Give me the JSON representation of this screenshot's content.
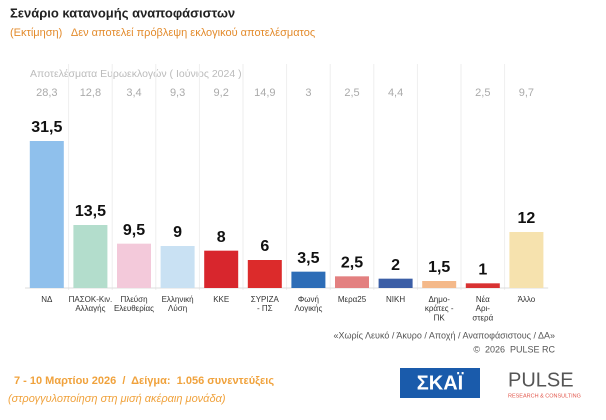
{
  "chart_data": {
    "type": "bar",
    "title": "Σενάριο κατανομής αναποφάσιστων",
    "subtitle": "(Εκτίμηση)   Δεν αποτελεί πρόβλεψη εκλογικού αποτελέσματος",
    "categories": [
      "ΝΔ",
      "ΠΑΣΟΚ-Κιν.\nΑλλαγής",
      "Πλεύση\nΕλευθερίας",
      "Ελληνική\nΛύση",
      "ΚΚΕ",
      "ΣΥΡΙΖΑ\n- ΠΣ",
      "Φωνή\nΛογικής",
      "Μερα25",
      "ΝΙΚΗ",
      "Δημο-\nκράτες -\nΠΚ",
      "Νέα\nΑρι-\nστερά",
      "Άλλο"
    ],
    "values": [
      31.5,
      13.5,
      9.5,
      9,
      8,
      6,
      3.5,
      2.5,
      2,
      1.5,
      1,
      12
    ],
    "value_labels": [
      "31,5",
      "13,5",
      "9,5",
      "9",
      "8",
      "6",
      "3,5",
      "2,5",
      "2",
      "1,5",
      "1",
      "12"
    ],
    "colors": [
      "#8fc0ec",
      "#b3ddcc",
      "#f3c9da",
      "#c9e1f3",
      "#d8262d",
      "#dc2b2b",
      "#2d6db7",
      "#e38080",
      "#3b5ea6",
      "#f4b98a",
      "#d83232",
      "#f6e2ae"
    ],
    "reference": {
      "name": "Αποτελέσματα Ευρωεκλογών ( Ιούνιος 2024 )",
      "values": [
        28.3,
        12.8,
        3.4,
        9.3,
        9.2,
        14.9,
        3,
        2.5,
        4.4,
        null,
        2.5,
        9.7
      ],
      "value_labels": [
        "28,3",
        "12,8",
        "3,4",
        "9,3",
        "9,2",
        "14,9",
        "3",
        "2,5",
        "4,4",
        null,
        "2,5",
        "9,7"
      ]
    },
    "note": "«Χωρίς Λευκό / Άκυρο / Αποχή / Αναποφάσιστους / ΔΑ»",
    "copyright": "©  2026  PULSE RC",
    "footer": "7 - 10 Μαρτίου 2026  /  Δείγμα:  1.056 συνεντεύξεις",
    "footer_note": "(στρογγυλοποίηση στη μισή ακέραιη μονάδα)",
    "logo_skai": "ΣΚΑΪ",
    "logo_pulse": "PULSE",
    "logo_pulse_sub": "RESEARCH & CONSULTING"
  }
}
